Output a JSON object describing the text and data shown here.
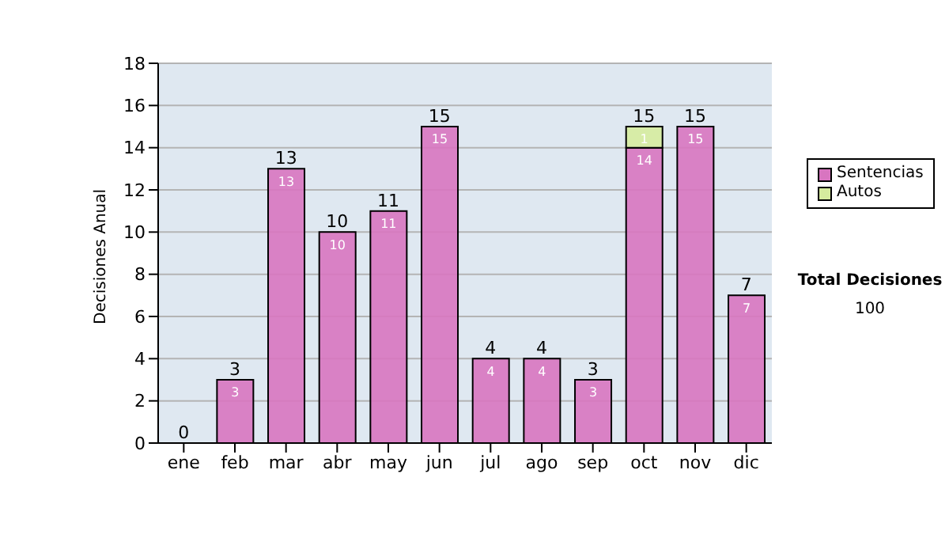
{
  "chart_data": {
    "type": "bar",
    "ylabel": "Decisiones Anual",
    "categories": [
      "ene",
      "feb",
      "mar",
      "abr",
      "may",
      "jun",
      "jul",
      "ago",
      "sep",
      "oct",
      "nov",
      "dic"
    ],
    "stacked": true,
    "series": [
      {
        "name": "Sentencias",
        "color": "#d875c0",
        "values": [
          0,
          3,
          13,
          10,
          11,
          15,
          4,
          4,
          3,
          14,
          15,
          7
        ],
        "value_labels": [
          null,
          "3",
          "13",
          "10",
          "11",
          "15",
          "4",
          "4",
          "3",
          "14",
          "15",
          "7"
        ]
      },
      {
        "name": "Autos",
        "color": "#d6ec9e",
        "values": [
          0,
          0,
          0,
          0,
          0,
          0,
          0,
          0,
          0,
          1,
          0,
          0
        ],
        "value_labels": [
          null,
          null,
          null,
          null,
          null,
          null,
          null,
          null,
          null,
          "1",
          null,
          null
        ]
      }
    ],
    "totals": [
      "0",
      "3",
      "13",
      "10",
      "11",
      "15",
      "4",
      "4",
      "3",
      "15",
      "15",
      "7"
    ],
    "ylim": [
      0,
      18
    ],
    "yticks": [
      0,
      2,
      4,
      6,
      8,
      10,
      12,
      14,
      16,
      18
    ],
    "grid": "y",
    "legend": "right",
    "annotations": [
      "Total Decisiones",
      "100"
    ]
  }
}
